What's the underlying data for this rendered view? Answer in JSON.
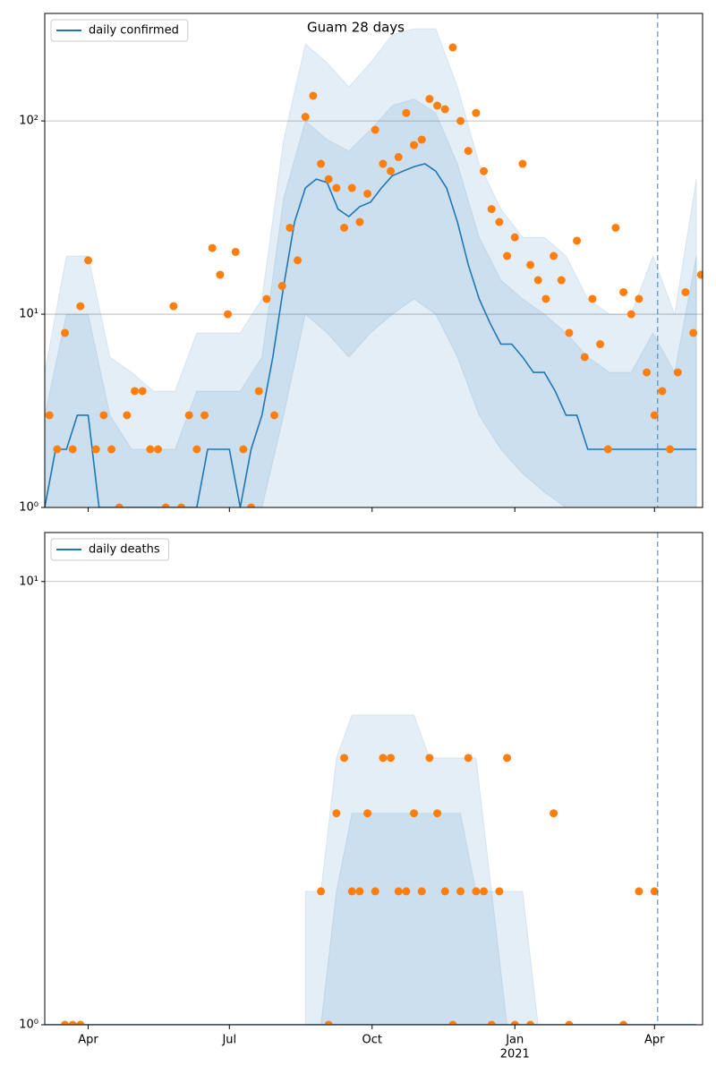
{
  "chart_data": [
    {
      "type": "line",
      "title": "Guam 28 days",
      "log_scale": true,
      "grid": true,
      "legend": "upper left",
      "xlim": [
        -28,
        396
      ],
      "ylim": [
        1,
        360
      ],
      "yticks": [
        {
          "value": 1,
          "label": "10⁰"
        },
        {
          "value": 10,
          "label": "10¹"
        },
        {
          "value": 100,
          "label": "10²"
        }
      ],
      "xticks": [
        0,
        91,
        183,
        275,
        365
      ],
      "vline_x": 367,
      "series": [
        {
          "name": "daily confirmed",
          "color": "#1f77b4",
          "x": [
            -28,
            -21,
            -14,
            -7,
            0,
            7,
            14,
            21,
            28,
            35,
            42,
            49,
            56,
            63,
            70,
            77,
            84,
            91,
            98,
            105,
            112,
            119,
            126,
            133,
            140,
            147,
            154,
            161,
            168,
            175,
            182,
            189,
            196,
            203,
            210,
            217,
            224,
            231,
            238,
            245,
            252,
            259,
            266,
            273,
            280,
            287,
            294,
            301,
            308,
            315,
            322,
            329,
            336,
            343,
            350,
            357,
            364,
            371,
            378,
            385,
            392
          ],
          "values": [
            1,
            2,
            2,
            3,
            3,
            1,
            1,
            1,
            1,
            1,
            1,
            1,
            1,
            1,
            1,
            2,
            2,
            2,
            1,
            2,
            3,
            6,
            14,
            30,
            45,
            50,
            48,
            35,
            32,
            36,
            38,
            45,
            52,
            55,
            58,
            60,
            55,
            45,
            30,
            18,
            12,
            9,
            7,
            7,
            6,
            5,
            5,
            4,
            3,
            3,
            2,
            2,
            2,
            2,
            2,
            2,
            2,
            2,
            2,
            2,
            2
          ]
        }
      ],
      "points": {
        "color": "#ff7f0e",
        "x": [
          -25,
          -20,
          -15,
          -10,
          -5,
          0,
          5,
          10,
          15,
          20,
          25,
          30,
          35,
          40,
          45,
          50,
          55,
          60,
          65,
          70,
          75,
          80,
          85,
          90,
          95,
          100,
          105,
          110,
          115,
          120,
          125,
          130,
          135,
          140,
          145,
          150,
          155,
          160,
          165,
          170,
          175,
          180,
          185,
          190,
          195,
          200,
          205,
          210,
          215,
          220,
          225,
          230,
          235,
          240,
          245,
          250,
          255,
          260,
          265,
          270,
          275,
          280,
          285,
          290,
          295,
          300,
          305,
          310,
          315,
          320,
          325,
          330,
          335,
          340,
          345,
          350,
          355,
          360,
          365,
          370,
          375,
          380,
          385,
          390,
          395
        ],
        "values": [
          3,
          2,
          8,
          2,
          11,
          19,
          2,
          3,
          2,
          1,
          3,
          4,
          4,
          2,
          2,
          1,
          11,
          1,
          3,
          2,
          3,
          22,
          16,
          10,
          21,
          2,
          1,
          4,
          12,
          3,
          14,
          28,
          19,
          105,
          135,
          60,
          50,
          45,
          28,
          45,
          30,
          42,
          90,
          60,
          55,
          65,
          110,
          75,
          80,
          130,
          120,
          115,
          240,
          100,
          70,
          110,
          55,
          35,
          30,
          20,
          25,
          60,
          18,
          15,
          12,
          20,
          15,
          8,
          24,
          6,
          12,
          7,
          2,
          28,
          13,
          10,
          12,
          5,
          3,
          4,
          2,
          5,
          13,
          8,
          16
        ]
      },
      "bands": [
        {
          "color": "#1f77b4",
          "x": [
            -28,
            -14,
            0,
            14,
            28,
            42,
            56,
            70,
            84,
            98,
            112,
            126,
            140,
            154,
            168,
            182,
            196,
            210,
            224,
            238,
            252,
            266,
            280,
            294,
            308,
            322,
            336,
            350,
            364,
            378,
            392
          ],
          "lower": [
            1,
            1,
            1,
            1,
            1,
            1,
            1,
            1,
            1,
            1,
            1,
            1,
            1,
            1,
            1,
            1,
            1,
            1,
            1,
            1,
            1,
            1,
            1,
            1,
            1,
            1,
            1,
            1,
            1,
            1,
            1
          ],
          "upper": [
            5,
            20,
            20,
            6,
            5,
            4,
            4,
            8,
            8,
            8,
            12,
            80,
            250,
            200,
            150,
            200,
            280,
            300,
            300,
            150,
            60,
            35,
            25,
            25,
            20,
            12,
            10,
            10,
            20,
            10,
            50
          ]
        },
        {
          "color": "#1f77b4",
          "x": [
            -28,
            -14,
            0,
            14,
            28,
            42,
            56,
            70,
            84,
            98,
            112,
            126,
            140,
            154,
            168,
            182,
            196,
            210,
            224,
            238,
            252,
            266,
            280,
            294,
            308,
            322,
            336,
            350,
            364,
            378,
            392
          ],
          "lower": [
            1,
            1,
            1,
            1,
            1,
            1,
            1,
            1,
            1,
            1,
            1,
            3,
            10,
            8,
            6,
            8,
            10,
            12,
            10,
            6,
            3,
            2,
            1.5,
            1.2,
            1,
            1,
            1,
            1,
            1,
            1,
            1
          ],
          "upper": [
            3,
            10,
            10,
            3,
            2,
            2,
            2,
            4,
            4,
            4,
            6,
            40,
            100,
            80,
            70,
            90,
            120,
            130,
            110,
            60,
            25,
            15,
            12,
            10,
            8,
            6,
            5,
            5,
            8,
            5,
            20
          ]
        }
      ]
    },
    {
      "type": "line",
      "log_scale": true,
      "grid": true,
      "legend": "upper left",
      "xlim": [
        -28,
        396
      ],
      "ylim": [
        1,
        12.9
      ],
      "yticks": [
        {
          "value": 1,
          "label": "10⁰"
        },
        {
          "value": 10,
          "label": "10¹"
        }
      ],
      "xticks": [
        {
          "value": 0,
          "label": "Apr"
        },
        {
          "value": 91,
          "label": "Jul"
        },
        {
          "value": 183,
          "label": "Oct"
        },
        {
          "value": 275,
          "label": "Jan"
        },
        {
          "value": 365,
          "label": "Apr"
        }
      ],
      "x_year_label": {
        "value": 275,
        "label": "2021"
      },
      "vline_x": 367,
      "series": [
        {
          "name": "daily deaths",
          "color": "#1f77b4",
          "x": [
            -28,
            0,
            28,
            56,
            84,
            112,
            140,
            168,
            196,
            224,
            252,
            280,
            308,
            336,
            364,
            392
          ],
          "values": [
            1,
            1,
            1,
            1,
            1,
            1,
            1,
            1,
            1,
            1,
            1,
            1,
            1,
            1,
            1,
            1
          ]
        }
      ],
      "points": {
        "color": "#ff7f0e",
        "x": [
          -15,
          -10,
          -5,
          150,
          155,
          160,
          165,
          170,
          175,
          180,
          185,
          190,
          195,
          200,
          205,
          210,
          215,
          220,
          225,
          230,
          235,
          240,
          245,
          250,
          255,
          260,
          265,
          270,
          275,
          285,
          300,
          310,
          345,
          355,
          365
        ],
        "values": [
          1,
          1,
          1,
          2,
          1,
          3,
          4,
          2,
          2,
          3,
          2,
          4,
          4,
          2,
          2,
          3,
          2,
          4,
          3,
          2,
          1,
          2,
          4,
          2,
          2,
          1,
          2,
          4,
          1,
          1,
          3,
          1,
          1,
          2,
          2
        ]
      },
      "bands": [
        {
          "color": "#1f77b4",
          "x": [
            140,
            150,
            160,
            170,
            180,
            190,
            200,
            210,
            220,
            230,
            240,
            250,
            260,
            270,
            280,
            290
          ],
          "lower": [
            1,
            1,
            1,
            1,
            1,
            1,
            1,
            1,
            1,
            1,
            1,
            1,
            1,
            1,
            1,
            1
          ],
          "upper": [
            2,
            2,
            4,
            5,
            5,
            5,
            5,
            5,
            4,
            4,
            4,
            4,
            2,
            2,
            2,
            1
          ]
        },
        {
          "color": "#1f77b4",
          "x": [
            140,
            150,
            160,
            170,
            180,
            190,
            200,
            210,
            220,
            230,
            240,
            250,
            260,
            270,
            280,
            290
          ],
          "lower": [
            1,
            1,
            1,
            1,
            1,
            1,
            1,
            1,
            1,
            1,
            1,
            1,
            1,
            1,
            1,
            1
          ],
          "upper": [
            1,
            1,
            2,
            3,
            3,
            3,
            3,
            3,
            3,
            3,
            3,
            2,
            2,
            1,
            1,
            1
          ]
        }
      ]
    }
  ]
}
